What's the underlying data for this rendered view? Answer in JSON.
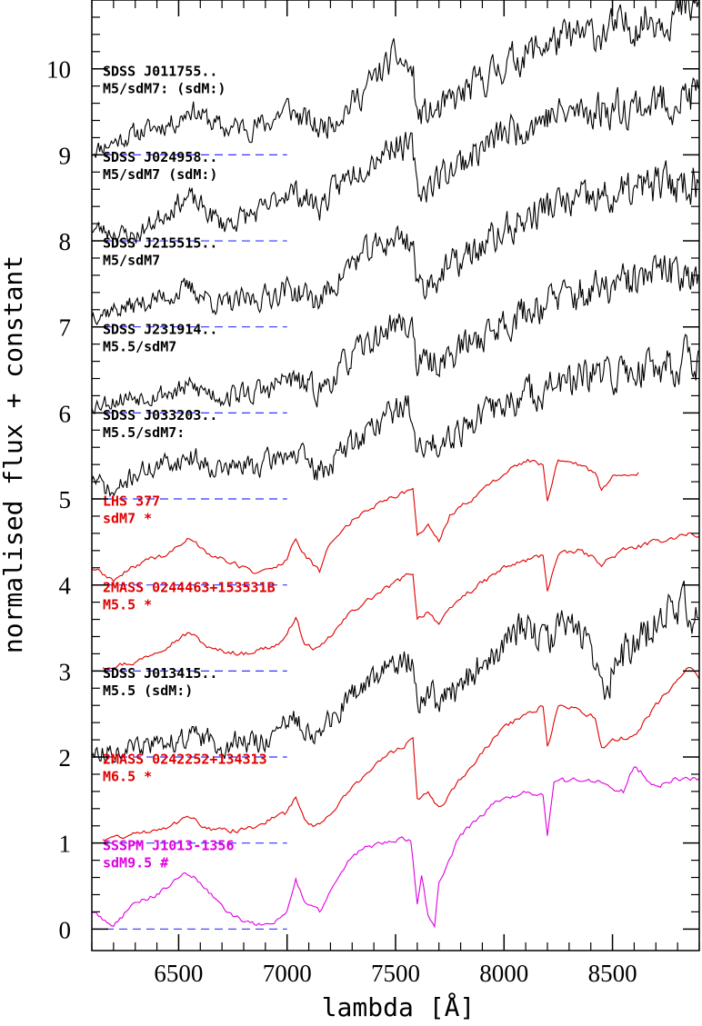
{
  "chart_data": {
    "type": "line",
    "xlabel": "lambda [Å]",
    "ylabel": "normalised flux + constant",
    "xlim": [
      6100,
      8900
    ],
    "ylim": [
      -0.25,
      10.8
    ],
    "x_ticks": [
      6500,
      7000,
      7500,
      8000,
      8500
    ],
    "y_ticks": [
      0,
      1,
      2,
      3,
      4,
      5,
      6,
      7,
      8,
      9,
      10
    ],
    "baseline_dash_color": "#3333ff",
    "baseline_dash_range": [
      6100,
      7000
    ],
    "series": [
      {
        "name": "SDSS J011755.. M5/sdM7: (sdM:)",
        "label_line1": "SDSS J011755..",
        "label_line2": "M5/sdM7: (sdM:)",
        "color": "#000000",
        "offset": 9,
        "kind": "sdss",
        "seed": 11,
        "x": [
          6100,
          6300,
          6500,
          6550,
          6700,
          6900,
          7000,
          7050,
          7150,
          7300,
          7500,
          7580,
          7600,
          7700,
          8000,
          8200,
          8500,
          8700,
          8900
        ],
        "y": [
          9.05,
          9.25,
          9.4,
          9.55,
          9.3,
          9.35,
          9.55,
          9.45,
          9.3,
          9.6,
          10.15,
          9.95,
          9.45,
          9.5,
          10.05,
          10.3,
          10.45,
          10.6,
          10.7
        ]
      },
      {
        "name": "SDSS J024958.. M5/sdM7 (sdM:)",
        "label_line1": "SDSS J024958..",
        "label_line2": "M5/sdM7 (sdM:)",
        "color": "#000000",
        "offset": 8,
        "kind": "sdss",
        "seed": 23,
        "x": [
          6100,
          6300,
          6500,
          6550,
          6700,
          6900,
          7000,
          7050,
          7150,
          7300,
          7500,
          7580,
          7600,
          7700,
          8000,
          8200,
          8500,
          8700,
          8900
        ],
        "y": [
          8.15,
          8.05,
          8.45,
          8.5,
          8.2,
          8.35,
          8.6,
          8.55,
          8.4,
          8.8,
          9.15,
          9.05,
          8.55,
          8.75,
          9.25,
          9.45,
          9.55,
          9.6,
          9.7
        ]
      },
      {
        "name": "SDSS J215515.. M5/sdM7",
        "label_line1": "SDSS J215515..",
        "label_line2": "M5/sdM7",
        "color": "#000000",
        "offset": 7,
        "kind": "sdss",
        "seed": 37,
        "x": [
          6100,
          6300,
          6500,
          6550,
          6700,
          6900,
          7000,
          7050,
          7150,
          7300,
          7500,
          7580,
          7600,
          7700,
          8000,
          8200,
          8500,
          8700,
          8900
        ],
        "y": [
          7.15,
          7.25,
          7.4,
          7.45,
          7.25,
          7.35,
          7.45,
          7.4,
          7.3,
          7.75,
          8.05,
          8.0,
          7.45,
          7.6,
          8.1,
          8.4,
          8.5,
          8.65,
          8.7
        ]
      },
      {
        "name": "SDSS J231914.. M5.5/sdM7",
        "label_line1": "SDSS J231914..",
        "label_line2": "M5.5/sdM7",
        "color": "#000000",
        "offset": 6,
        "kind": "sdss",
        "seed": 53,
        "x": [
          6100,
          6300,
          6500,
          6550,
          6700,
          6900,
          7000,
          7050,
          7150,
          7300,
          7500,
          7580,
          7600,
          7700,
          8000,
          8200,
          8500,
          8700,
          8900
        ],
        "y": [
          6.1,
          6.2,
          6.25,
          6.3,
          6.2,
          6.25,
          6.4,
          6.35,
          6.25,
          6.65,
          7.05,
          7.0,
          6.55,
          6.6,
          7.05,
          7.3,
          7.45,
          7.6,
          7.7
        ]
      },
      {
        "name": "SDSS J033203.. M5.5/sdM7:",
        "label_line1": "SDSS J033203..",
        "label_line2": "M5.5/sdM7:",
        "color": "#000000",
        "offset": 5,
        "kind": "sdss",
        "seed": 71,
        "x": [
          6100,
          6200,
          6300,
          6500,
          6550,
          6700,
          6900,
          7000,
          7050,
          7150,
          7300,
          7500,
          7580,
          7600,
          7700,
          8000,
          8200,
          8500,
          8700,
          8900
        ],
        "y": [
          5.25,
          5.05,
          5.3,
          5.45,
          5.5,
          5.35,
          5.4,
          5.55,
          5.5,
          5.3,
          5.65,
          6.05,
          6.05,
          5.5,
          5.7,
          6.1,
          6.3,
          6.45,
          6.55,
          6.65
        ]
      },
      {
        "name": "LHS 377 sdM7 *",
        "label_line1": "LHS 377",
        "label_line2": "sdM7 *",
        "color": "#e00000",
        "offset": 4,
        "kind": "smooth",
        "seed": 89,
        "x": [
          6100,
          6200,
          6350,
          6450,
          6550,
          6650,
          6750,
          6850,
          6950,
          7000,
          7040,
          7080,
          7150,
          7200,
          7300,
          7450,
          7580,
          7600,
          7650,
          7700,
          7750,
          7850,
          8000,
          8100,
          8180,
          8200,
          8250,
          8350,
          8420,
          8450,
          8500,
          8620
        ],
        "y": [
          4.2,
          4.05,
          4.3,
          4.35,
          4.55,
          4.35,
          4.25,
          4.15,
          4.2,
          4.3,
          4.55,
          4.35,
          4.15,
          4.5,
          4.75,
          5.0,
          5.1,
          4.6,
          4.7,
          4.5,
          4.8,
          5.0,
          5.3,
          5.45,
          5.4,
          4.95,
          5.45,
          5.4,
          5.3,
          5.1,
          5.25,
          5.3
        ]
      },
      {
        "name": "2MASS 0244463+153531B M5.5 *",
        "label_line1": "2MASS 0244463+153531B",
        "label_line2": "M5.5 *",
        "color": "#e00000",
        "offset": 3,
        "kind": "smooth",
        "seed": 97,
        "x": [
          6150,
          6300,
          6450,
          6550,
          6650,
          6800,
          6950,
          7000,
          7040,
          7080,
          7150,
          7300,
          7450,
          7580,
          7600,
          7650,
          7700,
          7800,
          8000,
          8180,
          8200,
          8250,
          8350,
          8420,
          8450,
          8550,
          8700,
          8850,
          8900
        ],
        "y": [
          3.05,
          3.1,
          3.3,
          3.45,
          3.25,
          3.2,
          3.3,
          3.4,
          3.65,
          3.3,
          3.25,
          3.7,
          3.95,
          4.15,
          3.6,
          3.7,
          3.55,
          3.85,
          4.2,
          4.35,
          3.95,
          4.35,
          4.4,
          4.3,
          4.25,
          4.4,
          4.5,
          4.6,
          4.55
        ]
      },
      {
        "name": "SDSS J013415.. M5.5 (sdM:)",
        "label_line1": "SDSS J013415..",
        "label_line2": "M5.5 (sdM:)",
        "color": "#000000",
        "offset": 2,
        "kind": "sdss",
        "seed": 113,
        "x": [
          6100,
          6300,
          6500,
          6550,
          6700,
          6900,
          7000,
          7050,
          7150,
          7300,
          7500,
          7580,
          7600,
          7650,
          7700,
          8000,
          8100,
          8150,
          8200,
          8400,
          8450,
          8500,
          8600,
          8800,
          8900
        ],
        "y": [
          2.05,
          2.1,
          2.2,
          2.25,
          2.15,
          2.2,
          2.35,
          2.45,
          2.25,
          2.7,
          3.1,
          3.15,
          2.7,
          2.75,
          2.6,
          3.3,
          3.55,
          3.35,
          3.45,
          3.45,
          2.75,
          3.0,
          3.3,
          3.8,
          3.6
        ]
      },
      {
        "name": "2MASS 0242252+134313 M6.5 *",
        "label_line1": "2MASS 0242252+134313",
        "label_line2": "M6.5 *",
        "color": "#e00000",
        "offset": 1,
        "kind": "smooth",
        "seed": 131,
        "x": [
          6150,
          6300,
          6450,
          6550,
          6650,
          6800,
          6950,
          7000,
          7040,
          7080,
          7150,
          7300,
          7450,
          7580,
          7600,
          7650,
          7700,
          7800,
          8000,
          8180,
          8200,
          8250,
          8350,
          8420,
          8450,
          8500,
          8600,
          8700,
          8850,
          8900
        ],
        "y": [
          1.05,
          1.1,
          1.2,
          1.3,
          1.15,
          1.15,
          1.3,
          1.35,
          1.55,
          1.25,
          1.2,
          1.65,
          2.0,
          2.2,
          1.5,
          1.6,
          1.4,
          1.75,
          2.35,
          2.6,
          2.1,
          2.6,
          2.55,
          2.45,
          2.1,
          2.2,
          2.25,
          2.6,
          3.05,
          2.9
        ]
      },
      {
        "name": "SSSPM J1013-1356 sdM9.5 #",
        "label_line1": "SSSPM J1013-1356",
        "label_line2": "sdM9.5 #",
        "color": "#e000e0",
        "offset": 0,
        "kind": "smooth",
        "seed": 149,
        "x": [
          6100,
          6200,
          6300,
          6400,
          6500,
          6550,
          6650,
          6750,
          6850,
          6950,
          7000,
          7040,
          7080,
          7150,
          7250,
          7350,
          7450,
          7570,
          7600,
          7620,
          7650,
          7680,
          7700,
          7800,
          7950,
          8100,
          8180,
          8200,
          8230,
          8350,
          8450,
          8550,
          8600,
          8700,
          8800,
          8900
        ],
        "y": [
          0.2,
          0.05,
          0.3,
          0.4,
          0.6,
          0.65,
          0.4,
          0.15,
          0.05,
          0.1,
          0.2,
          0.6,
          0.3,
          0.2,
          0.7,
          0.95,
          1.0,
          1.05,
          0.3,
          0.65,
          0.15,
          0.05,
          0.55,
          1.1,
          1.45,
          1.6,
          1.55,
          1.1,
          1.7,
          1.75,
          1.7,
          1.6,
          1.9,
          1.65,
          1.75,
          1.75
        ]
      }
    ]
  }
}
